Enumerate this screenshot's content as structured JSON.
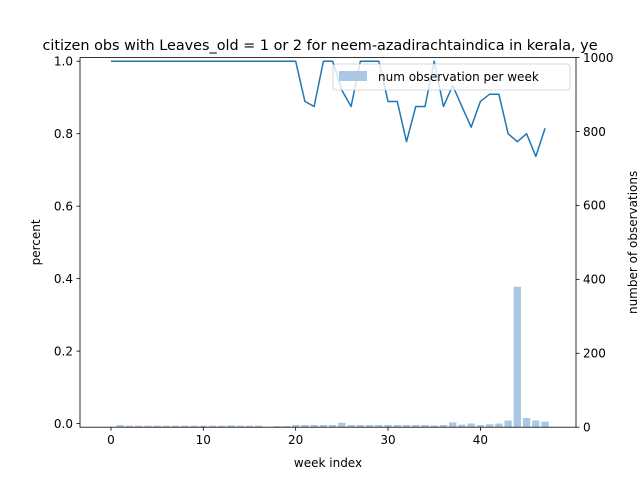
{
  "chart_data": {
    "type": "bar+line",
    "title": "citizen obs with Leaves_old = 1 or 2 for neem-azadirachtaindica in kerala, ye",
    "xlabel": "week index",
    "ylabel_left": "percent",
    "ylabel_right": "number of observations",
    "xlim": [
      -3.35,
      50.35
    ],
    "ylim_left": [
      -0.01,
      1.01
    ],
    "ylim_right": [
      0,
      1000
    ],
    "x_ticks": [
      0,
      10,
      20,
      30,
      40
    ],
    "y_ticks_left": [
      0.0,
      0.2,
      0.4,
      0.6,
      0.8,
      1.0
    ],
    "y_ticks_right": [
      0,
      200,
      400,
      600,
      800,
      1000
    ],
    "grid": false,
    "legend": {
      "placement": "top-right",
      "entries": [
        "num observation per week"
      ]
    },
    "series": [
      {
        "kind": "line",
        "axis": "left",
        "color": "#1f77b4",
        "x": [
          0,
          1,
          2,
          3,
          4,
          5,
          6,
          7,
          8,
          9,
          10,
          11,
          12,
          13,
          14,
          15,
          16,
          17,
          18,
          19,
          20,
          21,
          22,
          23,
          24,
          25,
          26,
          27,
          28,
          29,
          30,
          31,
          32,
          33,
          34,
          35,
          36,
          37,
          38,
          39,
          40,
          41,
          42,
          43,
          44,
          45,
          46,
          47
        ],
        "values": [
          1,
          1,
          1,
          1,
          1,
          1,
          1,
          1,
          1,
          1,
          1,
          1,
          1,
          1,
          1,
          1,
          1,
          1,
          1,
          1,
          1,
          0.889,
          0.875,
          1,
          1,
          0.92,
          0.875,
          1,
          1,
          1,
          0.889,
          0.889,
          0.778,
          0.875,
          0.875,
          1,
          0.875,
          0.933,
          0.875,
          0.818,
          0.889,
          0.909,
          0.909,
          0.8,
          0.778,
          0.8,
          0.737,
          0.815
        ]
      },
      {
        "kind": "bar",
        "axis": "right",
        "name": "num observation per week",
        "color": "#aac8e6",
        "x": [
          0,
          1,
          2,
          3,
          4,
          5,
          6,
          7,
          8,
          9,
          10,
          11,
          12,
          13,
          14,
          15,
          16,
          17,
          18,
          19,
          20,
          21,
          22,
          23,
          24,
          25,
          26,
          27,
          28,
          29,
          30,
          31,
          32,
          33,
          34,
          35,
          36,
          37,
          38,
          39,
          40,
          41,
          42,
          43,
          44,
          45,
          46,
          47
        ],
        "values": [
          1,
          6,
          4,
          4,
          4,
          4,
          4,
          4,
          4,
          4,
          4,
          4,
          4,
          5,
          4,
          4,
          4,
          1,
          3,
          3,
          6,
          6,
          6,
          6,
          6,
          12,
          6,
          6,
          6,
          6,
          6,
          6,
          6,
          6,
          6,
          5,
          6,
          13,
          7,
          10,
          6,
          8,
          10,
          18,
          380,
          25,
          18,
          15
        ]
      }
    ]
  }
}
